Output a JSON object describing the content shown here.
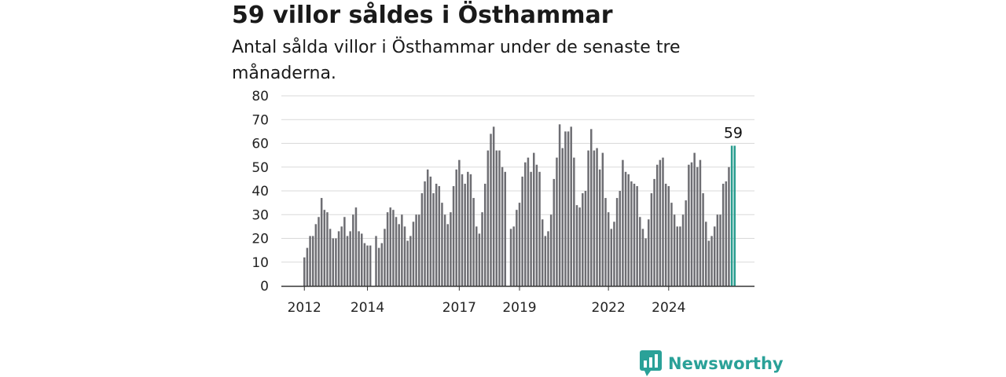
{
  "title": "59 villor såldes i Östhammar",
  "subtitle": "Antal sålda villor i Östhammar under de senaste tre månaderna.",
  "logo": {
    "text": "Newsworthy",
    "icon": "bar-chart-speech-bubble-icon"
  },
  "colors": {
    "bar": "#6e6e73",
    "highlight": "#2a9d8f",
    "grid": "#d9d9d9",
    "axis": "#333333",
    "brand": "#2aa198"
  },
  "chart_data": {
    "type": "bar",
    "title": "59 villor såldes i Östhammar",
    "subtitle": "Antal sålda villor i Östhammar under de senaste tre månaderna.",
    "xlabel": "",
    "ylabel": "",
    "ylim": [
      0,
      80
    ],
    "yticks": [
      "0",
      "10",
      "20",
      "30",
      "40",
      "50",
      "60",
      "70",
      "80"
    ],
    "grid": true,
    "xticks": [
      {
        "label": "2012",
        "index": 0
      },
      {
        "label": "2014",
        "index": 22
      },
      {
        "label": "2017",
        "index": 54
      },
      {
        "label": "2019",
        "index": 75
      },
      {
        "label": "2022",
        "index": 106
      },
      {
        "label": "2024",
        "index": 127
      }
    ],
    "highlight_value_label": "59",
    "values": [
      12,
      16,
      21,
      21,
      26,
      29,
      37,
      32,
      31,
      24,
      20,
      20,
      23,
      25,
      29,
      21,
      23,
      30,
      33,
      23,
      22,
      18,
      17,
      17,
      null,
      21,
      16,
      18,
      24,
      31,
      33,
      32,
      29,
      26,
      30,
      25,
      19,
      21,
      27,
      30,
      30,
      39,
      44,
      49,
      46,
      39,
      43,
      42,
      35,
      30,
      26,
      31,
      42,
      49,
      53,
      47,
      43,
      48,
      47,
      37,
      25,
      22,
      31,
      43,
      57,
      64,
      67,
      57,
      57,
      50,
      48,
      null,
      24,
      25,
      32,
      35,
      46,
      52,
      54,
      48,
      56,
      51,
      48,
      28,
      21,
      23,
      30,
      45,
      54,
      68,
      58,
      65,
      65,
      67,
      54,
      34,
      33,
      39,
      40,
      57,
      66,
      57,
      58,
      49,
      56,
      37,
      31,
      24,
      27,
      37,
      40,
      53,
      48,
      47,
      44,
      43,
      42,
      29,
      24,
      20,
      28,
      39,
      45,
      51,
      53,
      54,
      43,
      42,
      35,
      30,
      25,
      25,
      30,
      36,
      51,
      52,
      56,
      50,
      53,
      39,
      27,
      19,
      21,
      25,
      30,
      30,
      43,
      44,
      50,
      59,
      59
    ]
  }
}
